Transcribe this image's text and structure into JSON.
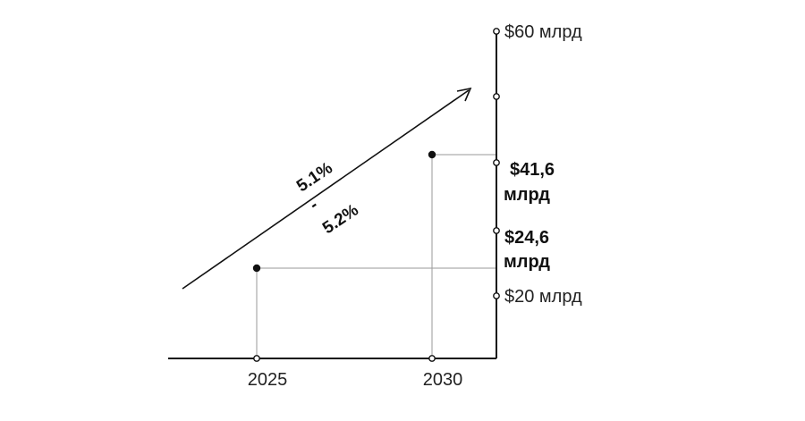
{
  "chart_data": {
    "type": "scatter",
    "x": [
      "2025",
      "2030"
    ],
    "values": [
      24.6,
      41.6
    ],
    "value_labels": [
      [
        "$24,6",
        "млрд"
      ],
      [
        "$41,6",
        "млрд"
      ]
    ],
    "y_ticks": [
      {
        "value": 20,
        "label": "$20 млрд"
      },
      {
        "value": 24.6,
        "label": ""
      },
      {
        "value": 41.6,
        "label": ""
      },
      {
        "value": 50.8,
        "label": ""
      },
      {
        "value": 60,
        "label": "$60 млрд"
      }
    ],
    "x_ticks": [
      {
        "value": "2025",
        "label": "2025"
      },
      {
        "value": "2030",
        "label": "2030"
      }
    ],
    "growth_annotation": {
      "lines": [
        "5.1%",
        "-",
        "5.2%"
      ]
    },
    "title": "",
    "xlabel": "",
    "ylabel": "",
    "grid": false,
    "legend": "none",
    "colors": {
      "axis": "#111111",
      "guide": "#9a9a9a",
      "text": "#222222"
    }
  }
}
